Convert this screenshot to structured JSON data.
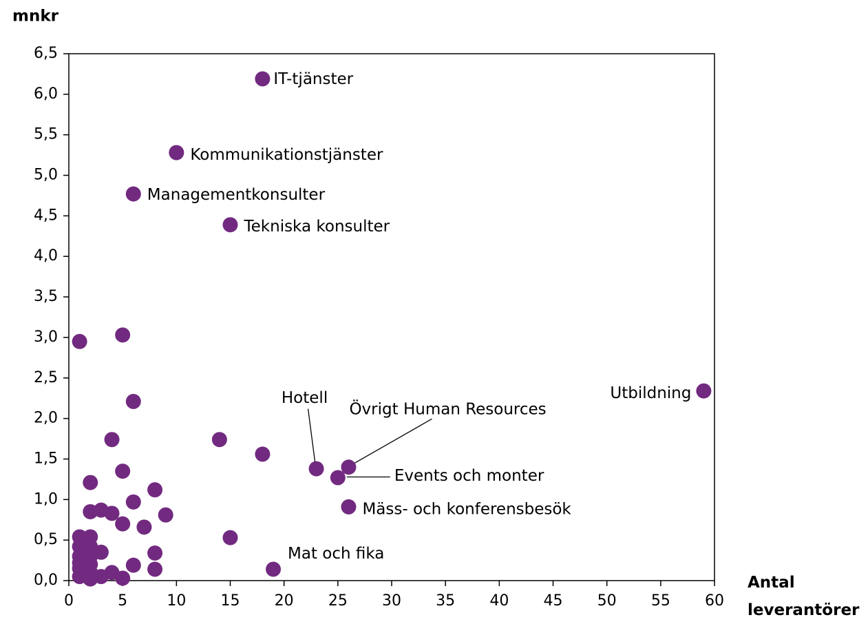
{
  "chart_data": {
    "type": "scatter",
    "y_label": "mnkr",
    "x_label": "Antal leverantörer",
    "color": "#722a80",
    "x": [
      18,
      10,
      6,
      15,
      1,
      5,
      59,
      6,
      4,
      14,
      18,
      23,
      26,
      25,
      5,
      2,
      26,
      6,
      8,
      2,
      3,
      4,
      9,
      5,
      7,
      15,
      1,
      2,
      1,
      2,
      1,
      2,
      3,
      8,
      6,
      8,
      19,
      1,
      1,
      2,
      2,
      3,
      4,
      5,
      1,
      2
    ],
    "y": [
      6.19,
      5.28,
      4.77,
      4.39,
      2.95,
      3.03,
      2.34,
      2.21,
      1.74,
      1.74,
      1.56,
      1.38,
      1.4,
      1.27,
      1.35,
      1.21,
      0.91,
      0.97,
      1.12,
      0.85,
      0.87,
      0.83,
      0.81,
      0.7,
      0.66,
      0.53,
      0.54,
      0.54,
      0.42,
      0.42,
      0.3,
      0.3,
      0.35,
      0.34,
      0.19,
      0.14,
      0.14,
      0.15,
      0.05,
      0.1,
      0.02,
      0.05,
      0.1,
      0.03,
      0.22,
      0.2
    ],
    "labels": [
      "IT-tjänster",
      "Kommunikationstjänster",
      "Managementkonsulter",
      "Tekniska konsulter",
      null,
      null,
      "Utbildning",
      null,
      null,
      null,
      null,
      "Hotell",
      "Övrigt Human Resources",
      "Events och monter",
      null,
      null,
      "Mäss- och konferensbesök",
      null,
      null,
      null,
      null,
      null,
      null,
      null,
      null,
      null,
      null,
      null,
      null,
      null,
      null,
      null,
      null,
      null,
      null,
      null,
      "Mat och fika",
      null,
      null,
      null,
      null,
      null,
      null,
      null,
      null,
      null
    ],
    "xlim": [
      0,
      60
    ],
    "xticks": [
      0,
      5,
      10,
      15,
      20,
      25,
      30,
      35,
      40,
      45,
      50,
      55,
      60
    ],
    "ylim": [
      0,
      6.5
    ],
    "yticks": [
      {
        "value": 0,
        "label": "0,0"
      },
      {
        "value": 0.5,
        "label": "0,5"
      },
      {
        "value": 1,
        "label": "1,0"
      },
      {
        "value": 1.5,
        "label": "1,5"
      },
      {
        "value": 2,
        "label": "2,0"
      },
      {
        "value": 2.5,
        "label": "2,5"
      },
      {
        "value": 3,
        "label": "3,0"
      },
      {
        "value": 3.5,
        "label": "3,5"
      },
      {
        "value": 4,
        "label": "4,0"
      },
      {
        "value": 4.5,
        "label": "4,5"
      },
      {
        "value": 5,
        "label": "5,0"
      },
      {
        "value": 5.5,
        "label": "5,5"
      },
      {
        "value": 6,
        "label": "6,0"
      },
      {
        "value": 6.5,
        "label": "6,5"
      }
    ],
    "grid": false
  }
}
